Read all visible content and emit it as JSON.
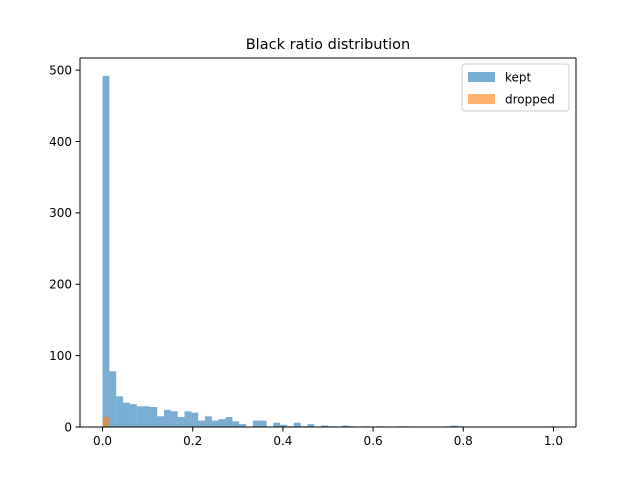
{
  "chart_data": {
    "type": "bar",
    "title": "Black ratio distribution",
    "xlabel": "",
    "ylabel": "",
    "xlim": [
      -0.05,
      1.05
    ],
    "ylim": [
      0,
      517
    ],
    "x_ticks": [
      0.0,
      0.2,
      0.4,
      0.6,
      0.8,
      1.0
    ],
    "x_tick_labels": [
      "0.0",
      "0.2",
      "0.4",
      "0.6",
      "0.8",
      "1.0"
    ],
    "y_ticks": [
      0,
      100,
      200,
      300,
      400,
      500
    ],
    "y_tick_labels": [
      "0",
      "100",
      "200",
      "300",
      "400",
      "500"
    ],
    "bin_width": 0.01515,
    "grid": false,
    "legend_position": "top-right",
    "series": [
      {
        "name": "kept",
        "color": "#1f77b4",
        "opacity": 0.6,
        "bins": [
          [
            0.0,
            492
          ],
          [
            0.01515,
            78
          ],
          [
            0.0303,
            43
          ],
          [
            0.04545,
            34
          ],
          [
            0.0606,
            32
          ],
          [
            0.07575,
            29
          ],
          [
            0.0909,
            29
          ],
          [
            0.10605,
            28
          ],
          [
            0.1212,
            15
          ],
          [
            0.13635,
            24
          ],
          [
            0.1515,
            22
          ],
          [
            0.16665,
            14
          ],
          [
            0.1818,
            22
          ],
          [
            0.19695,
            20
          ],
          [
            0.2121,
            9
          ],
          [
            0.22725,
            15
          ],
          [
            0.2424,
            9
          ],
          [
            0.25755,
            11
          ],
          [
            0.2727,
            14
          ],
          [
            0.28785,
            8
          ],
          [
            0.303,
            4
          ],
          [
            0.31815,
            0
          ],
          [
            0.3333,
            9
          ],
          [
            0.34845,
            9
          ],
          [
            0.3636,
            0
          ],
          [
            0.37875,
            6
          ],
          [
            0.3939,
            3
          ],
          [
            0.40905,
            1
          ],
          [
            0.4242,
            6
          ],
          [
            0.43935,
            1
          ],
          [
            0.4545,
            4
          ],
          [
            0.46965,
            0
          ],
          [
            0.4848,
            2
          ],
          [
            0.49995,
            1
          ],
          [
            0.5151,
            0
          ],
          [
            0.53025,
            2
          ],
          [
            0.5454,
            1
          ],
          [
            0.56055,
            0
          ],
          [
            0.5757,
            1
          ],
          [
            0.59085,
            0
          ],
          [
            0.606,
            1
          ],
          [
            0.62115,
            0
          ],
          [
            0.6363,
            0
          ],
          [
            0.65145,
            1
          ],
          [
            0.6666,
            1
          ],
          [
            0.68175,
            0
          ],
          [
            0.6969,
            0
          ],
          [
            0.71205,
            0
          ],
          [
            0.7272,
            0
          ],
          [
            0.74235,
            0
          ],
          [
            0.7575,
            1
          ],
          [
            0.77265,
            2
          ],
          [
            0.7878,
            1
          ],
          [
            0.80295,
            0
          ],
          [
            0.8181,
            0
          ],
          [
            0.83325,
            0
          ],
          [
            0.8484,
            0
          ],
          [
            0.86355,
            0
          ],
          [
            0.8787,
            0
          ],
          [
            0.89385,
            0
          ],
          [
            0.909,
            0
          ],
          [
            0.92415,
            0
          ],
          [
            0.9393,
            0
          ],
          [
            0.95445,
            0
          ],
          [
            0.9696,
            0
          ],
          [
            0.98475,
            0
          ]
        ]
      },
      {
        "name": "dropped",
        "color": "#ff7f0e",
        "opacity": 0.6,
        "bins": [
          [
            0.0,
            14
          ],
          [
            0.98475,
            1
          ]
        ]
      }
    ]
  }
}
